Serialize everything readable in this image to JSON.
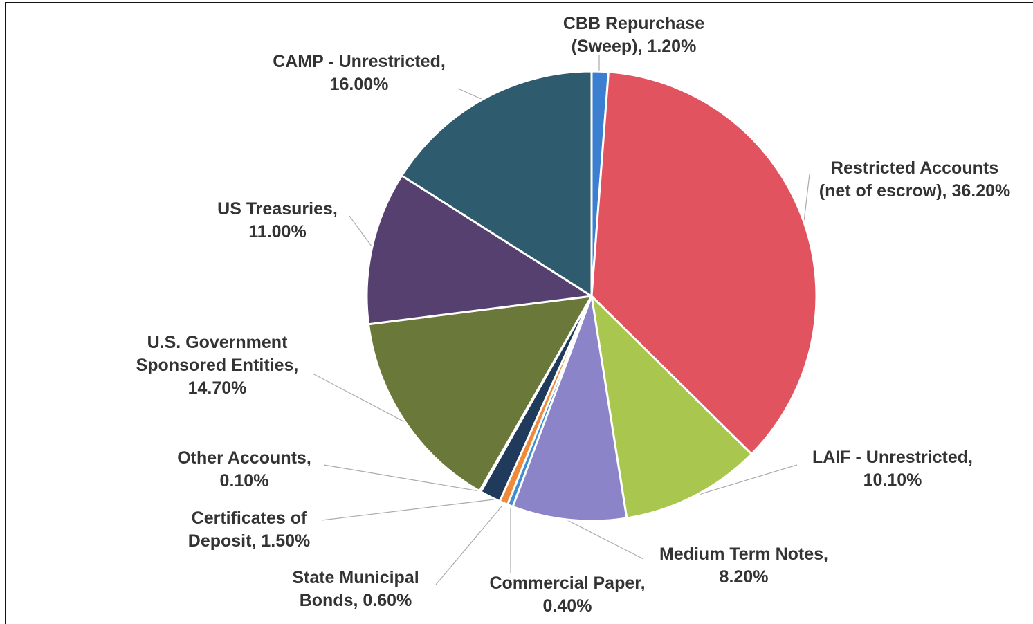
{
  "chart_data": {
    "type": "pie",
    "categories": [
      "CBB Repurchase (Sweep),",
      "Restricted Accounts (net of escrow),",
      "LAIF - Unrestricted,",
      "Medium Term Notes,",
      "Commercial Paper,",
      "State Municipal Bonds,",
      "Certificates of Deposit,",
      "Other Accounts,",
      "U.S. Government Sponsored Entities,",
      "US Treasuries,",
      "CAMP - Unrestricted,"
    ],
    "values": [
      1.2,
      36.2,
      10.1,
      8.2,
      0.4,
      0.6,
      1.5,
      0.1,
      14.7,
      11.0,
      16.0
    ],
    "value_labels": [
      "1.20%",
      "36.20%",
      "10.10%",
      "8.20%",
      "0.40%",
      "0.60%",
      "1.50%",
      "0.10%",
      "14.70%",
      "11.00%",
      "16.00%"
    ],
    "colors": [
      "#3b7fd0",
      "#e0535f",
      "#a9c64f",
      "#8c84c8",
      "#3d8fd2",
      "#ef8a3a",
      "#1f3a5a",
      "#4a6b8c",
      "#6a783a",
      "#56406f",
      "#2f5b6e"
    ]
  }
}
